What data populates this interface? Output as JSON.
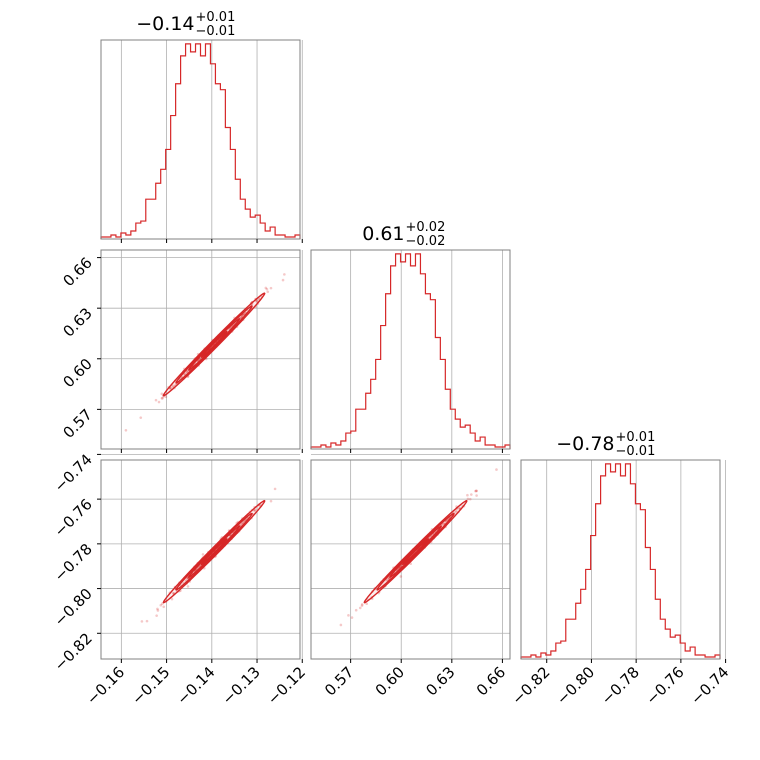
{
  "chart_data": {
    "type": "corner",
    "color": "#d62728",
    "grid": true,
    "parameters": [
      {
        "title_value": "−0.14",
        "title_plus": "+0.01",
        "title_minus": "−0.01",
        "range": [
          -0.1645,
          -0.1205
        ],
        "ticks": [
          -0.16,
          -0.15,
          -0.14,
          -0.13,
          -0.12
        ],
        "tick_labels": [
          "−0.16",
          "−0.15",
          "−0.14",
          "−0.13",
          "−0.12"
        ],
        "mean": -0.1395,
        "sd": 0.0056
      },
      {
        "title_value": "0.61",
        "title_plus": "+0.02",
        "title_minus": "−0.02",
        "range": [
          0.5465,
          0.6645
        ],
        "ticks": [
          0.57,
          0.6,
          0.63,
          0.66
        ],
        "tick_labels": [
          "0.57",
          "0.60",
          "0.63",
          "0.66"
        ],
        "mean": 0.6085,
        "sd": 0.0152
      },
      {
        "title_value": "−0.78",
        "title_plus": "+0.01",
        "title_minus": "−0.01",
        "range": [
          -0.8315,
          -0.7425
        ],
        "ticks": [
          -0.82,
          -0.8,
          -0.78,
          -0.76,
          -0.74
        ],
        "tick_labels": [
          "−0.82",
          "−0.80",
          "−0.78",
          "−0.76",
          "−0.74"
        ],
        "mean": -0.7835,
        "sd": 0.0114
      }
    ],
    "histograms": [
      {
        "bins": 40,
        "counts": [
          1,
          1,
          2,
          1,
          3,
          2,
          4,
          8,
          9,
          20,
          20,
          28,
          35,
          45,
          62,
          78,
          92,
          98,
          94,
          98,
          92,
          98,
          88,
          78,
          75,
          56,
          45,
          30,
          20,
          15,
          11,
          12,
          8,
          4,
          6,
          2,
          2,
          1,
          1,
          2
        ]
      },
      {
        "bins": 40,
        "counts": [
          1,
          1,
          2,
          1,
          3,
          2,
          4,
          8,
          9,
          20,
          20,
          28,
          35,
          45,
          62,
          78,
          92,
          98,
          94,
          98,
          92,
          98,
          88,
          78,
          75,
          56,
          45,
          30,
          20,
          15,
          11,
          12,
          8,
          4,
          6,
          2,
          2,
          1,
          1,
          2
        ]
      },
      {
        "bins": 40,
        "counts": [
          1,
          1,
          2,
          1,
          3,
          2,
          4,
          8,
          9,
          20,
          20,
          28,
          35,
          45,
          62,
          78,
          92,
          98,
          94,
          98,
          92,
          98,
          88,
          78,
          75,
          56,
          45,
          30,
          20,
          15,
          11,
          12,
          8,
          4,
          6,
          2,
          2,
          1,
          1,
          2
        ]
      }
    ],
    "correlation": 0.995
  }
}
